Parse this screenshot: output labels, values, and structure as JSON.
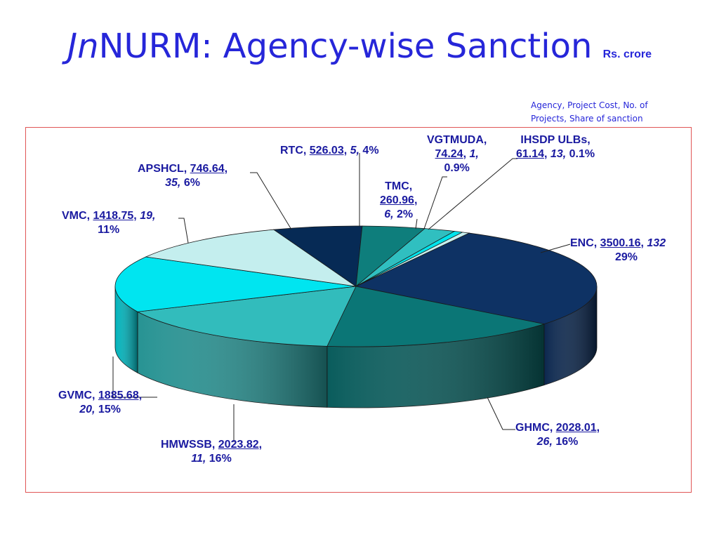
{
  "title": {
    "italic": "Jn",
    "main": "NURM: Agency-wise Sanction",
    "unit": "Rs. crore"
  },
  "legend_note": "Agency, Project Cost, No. of Projects, Share of sanction",
  "colors": {
    "ENC": "#0e3264",
    "GHMC": "#0b7676",
    "HMWSSB": "#32bcbc",
    "GVMC": "#00e5f0",
    "VMC": "#c4eeee",
    "APSHCL": "#062a55",
    "RTC": "#0e7e7c",
    "TMC": "#30bfc0",
    "VGTMUDA": "#00e4ec",
    "IHSDP": "#c8f0f0"
  },
  "chart_data": {
    "type": "pie",
    "title": "JnNURM: Agency-wise Sanction",
    "unit": "Rs. crore",
    "slices": [
      {
        "agency": "ENC",
        "cost": 3500.16,
        "projects": 132,
        "share": 29,
        "share_label": "29%",
        "cost_label": "3500.16",
        "projects_label": "132"
      },
      {
        "agency": "GHMC",
        "cost": 2028.01,
        "projects": 26,
        "share": 16,
        "share_label": "16%",
        "cost_label": "2028.01,",
        "projects_label": "26,"
      },
      {
        "agency": "HMWSSB",
        "cost": 2023.82,
        "projects": 11,
        "share": 16,
        "share_label": "16%",
        "cost_label": "2023.82",
        "projects_label": "11,"
      },
      {
        "agency": "GVMC",
        "cost": 1885.68,
        "projects": 20,
        "share": 15,
        "share_label": "15%",
        "cost_label": "1885.68,",
        "projects_label": "20,"
      },
      {
        "agency": "VMC",
        "cost": 1418.75,
        "projects": 19,
        "share": 11,
        "share_label": "11%",
        "cost_label": "1418.75,",
        "projects_label": "19,"
      },
      {
        "agency": "APSHCL",
        "cost": 746.64,
        "projects": 35,
        "share": 6,
        "share_label": "6%",
        "cost_label": "746.64,",
        "projects_label": "35,"
      },
      {
        "agency": "RTC",
        "cost": 526.03,
        "projects": 5,
        "share": 4,
        "share_label": "4%",
        "cost_label": "526.03,",
        "projects_label": "5,"
      },
      {
        "agency": "TMC",
        "cost": 260.96,
        "projects": 6,
        "share": 2,
        "share_label": "2%",
        "cost_label": "260.96",
        "projects_label": "6,"
      },
      {
        "agency": "VGTMUDA",
        "cost": 74.24,
        "projects": 1,
        "share": 0.9,
        "share_label": "0.9%",
        "cost_label": "74.24",
        "projects_label": "1,"
      },
      {
        "agency": "IHSDP ULBs",
        "cost": 61.14,
        "projects": 13,
        "share": 0.1,
        "share_label": "0.1%",
        "cost_label": "61.14,",
        "projects_label": "13,"
      }
    ]
  }
}
